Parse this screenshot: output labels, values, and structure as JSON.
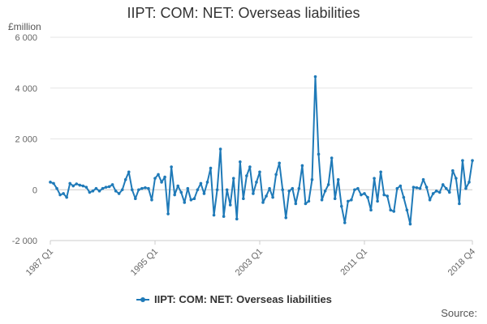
{
  "page": {
    "source_label": "Source:"
  },
  "chart_data": {
    "type": "line",
    "title": "IIPT: COM: NET: Overseas liabilities",
    "ylabel": "£million",
    "xlabel": "",
    "x_start": "1987 Q1",
    "x_end": "2018 Q4",
    "x_tick_labels": [
      "1987 Q1",
      "1995 Q1",
      "2003 Q1",
      "2011 Q1",
      "2018 Q4"
    ],
    "y_ticks": [
      -2000,
      0,
      2000,
      4000,
      6000
    ],
    "y_tick_labels": [
      "-2 000",
      "0",
      "2 000",
      "4 000",
      "6 000"
    ],
    "ylim": [
      -2000,
      6000
    ],
    "grid": "horizontal",
    "legend_position": "bottom",
    "colors": {
      "series": "#1f7ab8",
      "grid": "#e6e6e6",
      "axis": "#cccccc"
    },
    "series": [
      {
        "name": "IIPT: COM: NET: Overseas liabilities",
        "values": [
          300,
          250,
          50,
          -200,
          -150,
          -300,
          250,
          150,
          230,
          180,
          150,
          100,
          -100,
          -50,
          50,
          -50,
          50,
          100,
          120,
          200,
          -50,
          -150,
          0,
          400,
          700,
          0,
          -350,
          0,
          50,
          80,
          50,
          -400,
          450,
          600,
          300,
          500,
          -950,
          900,
          -200,
          150,
          -100,
          -500,
          50,
          -400,
          -350,
          0,
          250,
          -150,
          300,
          850,
          -1000,
          0,
          1600,
          -1050,
          0,
          -600,
          450,
          -1150,
          1100,
          -350,
          550,
          900,
          -150,
          300,
          700,
          -500,
          -250,
          50,
          -300,
          600,
          1050,
          0,
          -1100,
          -50,
          50,
          -550,
          50,
          950,
          -550,
          -450,
          400,
          4450,
          1400,
          -400,
          -50,
          200,
          1250,
          -350,
          400,
          -650,
          -1300,
          -450,
          -400,
          0,
          50,
          -200,
          -150,
          -300,
          -800,
          450,
          -450,
          700,
          -200,
          -250,
          -800,
          -850,
          50,
          150,
          -300,
          -800,
          -1350,
          100,
          80,
          50,
          400,
          100,
          -400,
          -150,
          -50,
          -100,
          200,
          50,
          -100,
          750,
          450,
          -550,
          1150,
          50,
          300,
          1150
        ]
      }
    ]
  }
}
